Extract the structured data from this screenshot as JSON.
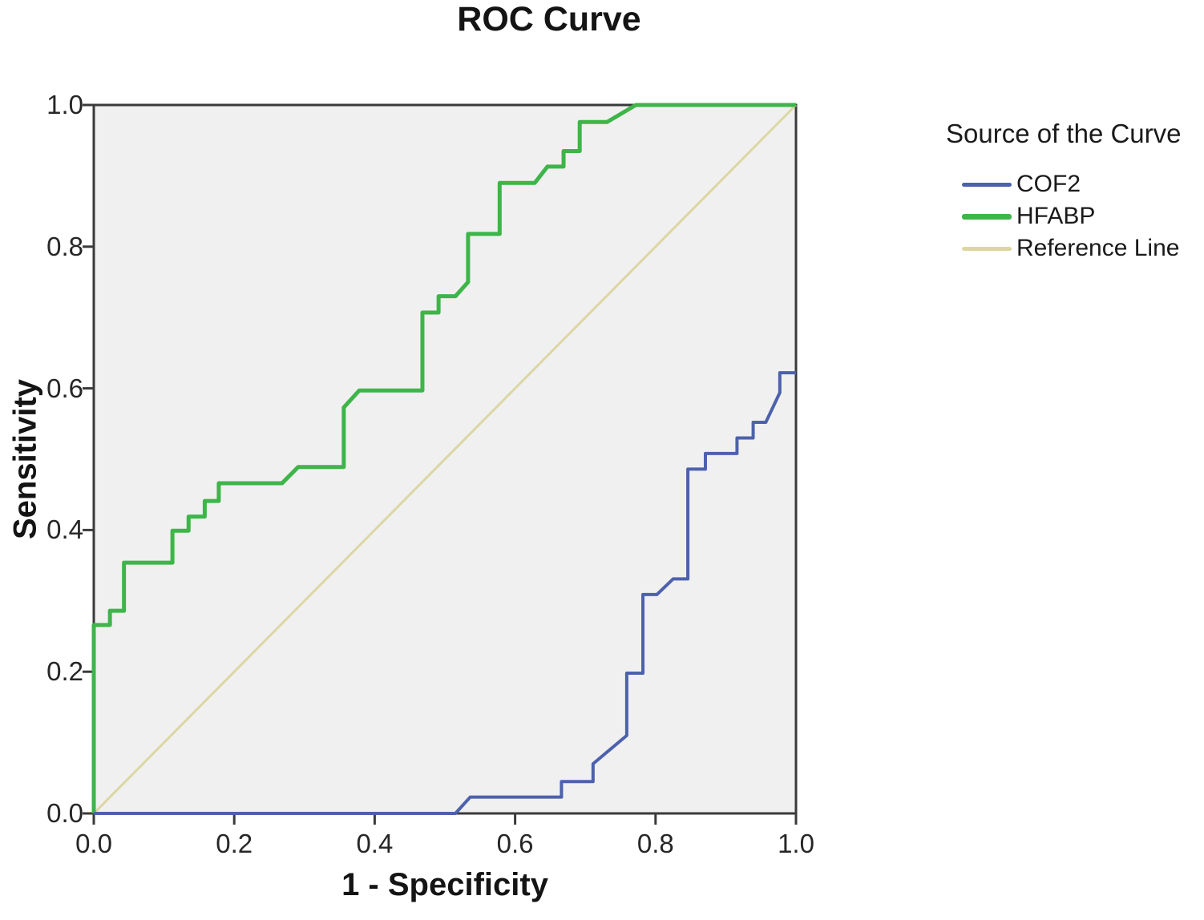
{
  "title": "ROC Curve",
  "chart_data": {
    "type": "line",
    "subtype": "roc-curve",
    "title": "ROC Curve",
    "xlabel": "1 - Specificity",
    "ylabel": "Sensitivity",
    "xlim": [
      0.0,
      1.0
    ],
    "ylim": [
      0.0,
      1.0
    ],
    "x_ticks": [
      0.0,
      0.2,
      0.4,
      0.6,
      0.8,
      1.0
    ],
    "y_ticks": [
      0.0,
      0.2,
      0.4,
      0.6,
      0.8,
      1.0
    ],
    "x_tick_labels": [
      "0.0",
      "0.2",
      "0.4",
      "0.6",
      "0.8",
      "1.0"
    ],
    "y_tick_labels": [
      "0.0",
      "0.2",
      "0.4",
      "0.6",
      "0.8",
      "1.0"
    ],
    "grid": false,
    "plot_background": "#f0f0f0",
    "frame_color": "#3a3a3a",
    "legend_position": "right",
    "series": [
      {
        "name": "HFABP",
        "color": "#3eb549",
        "stroke_width": 5,
        "points": [
          [
            0.0,
            0.0
          ],
          [
            0.0,
            0.266
          ],
          [
            0.023,
            0.266
          ],
          [
            0.023,
            0.286
          ],
          [
            0.043,
            0.286
          ],
          [
            0.043,
            0.354
          ],
          [
            0.112,
            0.354
          ],
          [
            0.112,
            0.399
          ],
          [
            0.135,
            0.399
          ],
          [
            0.135,
            0.419
          ],
          [
            0.158,
            0.419
          ],
          [
            0.158,
            0.441
          ],
          [
            0.178,
            0.441
          ],
          [
            0.178,
            0.466
          ],
          [
            0.268,
            0.466
          ],
          [
            0.291,
            0.489
          ],
          [
            0.356,
            0.489
          ],
          [
            0.356,
            0.573
          ],
          [
            0.378,
            0.597
          ],
          [
            0.468,
            0.597
          ],
          [
            0.468,
            0.707
          ],
          [
            0.491,
            0.707
          ],
          [
            0.491,
            0.73
          ],
          [
            0.515,
            0.73
          ],
          [
            0.533,
            0.75
          ],
          [
            0.533,
            0.818
          ],
          [
            0.578,
            0.818
          ],
          [
            0.578,
            0.89
          ],
          [
            0.628,
            0.89
          ],
          [
            0.646,
            0.913
          ],
          [
            0.669,
            0.913
          ],
          [
            0.669,
            0.935
          ],
          [
            0.692,
            0.935
          ],
          [
            0.692,
            0.976
          ],
          [
            0.731,
            0.976
          ],
          [
            0.772,
            1.0
          ],
          [
            1.0,
            1.0
          ]
        ]
      },
      {
        "name": "COF2",
        "color": "#4d61ac",
        "stroke_width": 4,
        "points": [
          [
            0.0,
            0.0
          ],
          [
            0.515,
            0.0
          ],
          [
            0.536,
            0.023
          ],
          [
            0.666,
            0.023
          ],
          [
            0.666,
            0.045
          ],
          [
            0.711,
            0.045
          ],
          [
            0.711,
            0.07
          ],
          [
            0.759,
            0.11
          ],
          [
            0.759,
            0.198
          ],
          [
            0.782,
            0.198
          ],
          [
            0.782,
            0.309
          ],
          [
            0.802,
            0.309
          ],
          [
            0.825,
            0.331
          ],
          [
            0.846,
            0.331
          ],
          [
            0.846,
            0.486
          ],
          [
            0.871,
            0.486
          ],
          [
            0.871,
            0.508
          ],
          [
            0.916,
            0.508
          ],
          [
            0.916,
            0.53
          ],
          [
            0.939,
            0.53
          ],
          [
            0.939,
            0.552
          ],
          [
            0.957,
            0.552
          ],
          [
            0.977,
            0.594
          ],
          [
            0.977,
            0.622
          ],
          [
            1.0,
            0.622
          ]
        ]
      }
    ],
    "reference_line": {
      "name": "Reference Line",
      "color": "#ddd6a3",
      "stroke_width": 3,
      "points": [
        [
          0.0,
          0.0
        ],
        [
          1.0,
          1.0
        ]
      ]
    }
  },
  "legend": {
    "title": "Source of the Curve",
    "items": [
      {
        "label": "COF2",
        "color": "#4d61ac",
        "thickness": 5
      },
      {
        "label": "HFABP",
        "color": "#3eb549",
        "thickness": 7
      },
      {
        "label": "Reference Line",
        "color": "#ddd6a3",
        "thickness": 5
      }
    ]
  }
}
